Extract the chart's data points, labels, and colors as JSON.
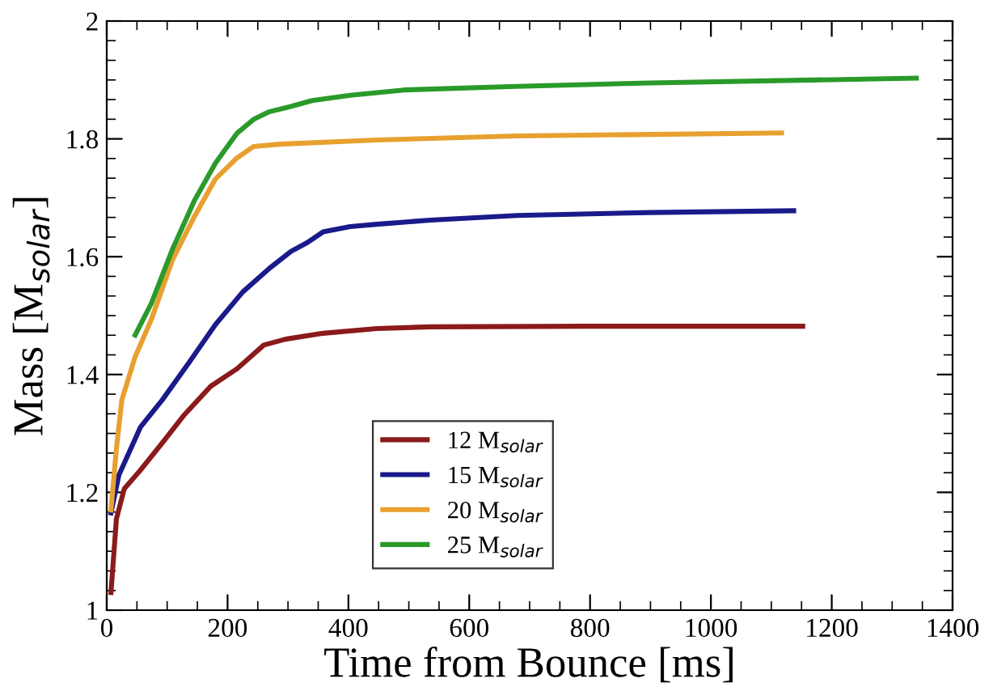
{
  "chart_data": {
    "type": "line",
    "xlabel": "Time from Bounce [ms]",
    "ylabel": "Mass [M$_{solar}$]",
    "xlim": [
      0,
      1400
    ],
    "xticks": [
      0,
      200,
      400,
      600,
      800,
      1000,
      1200,
      1400
    ],
    "ylim": [
      1,
      2
    ],
    "yticks": [
      1,
      1.2,
      1.4,
      1.6,
      1.8,
      2
    ],
    "grid": false,
    "legend": "bottom left",
    "marker": "none",
    "line_style": "solid",
    "series": [
      {
        "name": "12 M$_{solar}$",
        "color": "#8b1a1a",
        "x": [
          7,
          16,
          29,
          56,
          92,
          127,
          172,
          216,
          260,
          296,
          358,
          447,
          536,
          800,
          1152
        ],
        "values": [
          1.03,
          1.155,
          1.206,
          1.238,
          1.284,
          1.33,
          1.38,
          1.41,
          1.45,
          1.46,
          1.47,
          1.478,
          1.481,
          1.482,
          1.482
        ]
      },
      {
        "name": "15 M$_{solar}$",
        "color": "#1a1a8b",
        "x": [
          7,
          20,
          56,
          92,
          136,
          180,
          225,
          269,
          305,
          332,
          358,
          403,
          447,
          536,
          680,
          900,
          1137
        ],
        "values": [
          1.165,
          1.229,
          1.311,
          1.357,
          1.42,
          1.485,
          1.54,
          1.58,
          1.609,
          1.624,
          1.642,
          1.651,
          1.655,
          1.662,
          1.67,
          1.675,
          1.678
        ]
      },
      {
        "name": "20 M$_{solar}$",
        "color": "#e8a030",
        "x": [
          7,
          16,
          25,
          47,
          74,
          109,
          145,
          180,
          216,
          243,
          287,
          447,
          678,
          1117
        ],
        "values": [
          1.17,
          1.274,
          1.357,
          1.43,
          1.494,
          1.595,
          1.668,
          1.732,
          1.768,
          1.787,
          1.791,
          1.798,
          1.805,
          1.81
        ]
      },
      {
        "name": "25 M$_{solar}$",
        "color": "#2a9a2a",
        "x": [
          47,
          74,
          109,
          145,
          180,
          216,
          243,
          269,
          305,
          340,
          403,
          492,
          678,
          900,
          1340
        ],
        "values": [
          1.467,
          1.521,
          1.613,
          1.695,
          1.759,
          1.81,
          1.833,
          1.846,
          1.855,
          1.865,
          1.874,
          1.883,
          1.889,
          1.895,
          1.903
        ]
      }
    ]
  }
}
